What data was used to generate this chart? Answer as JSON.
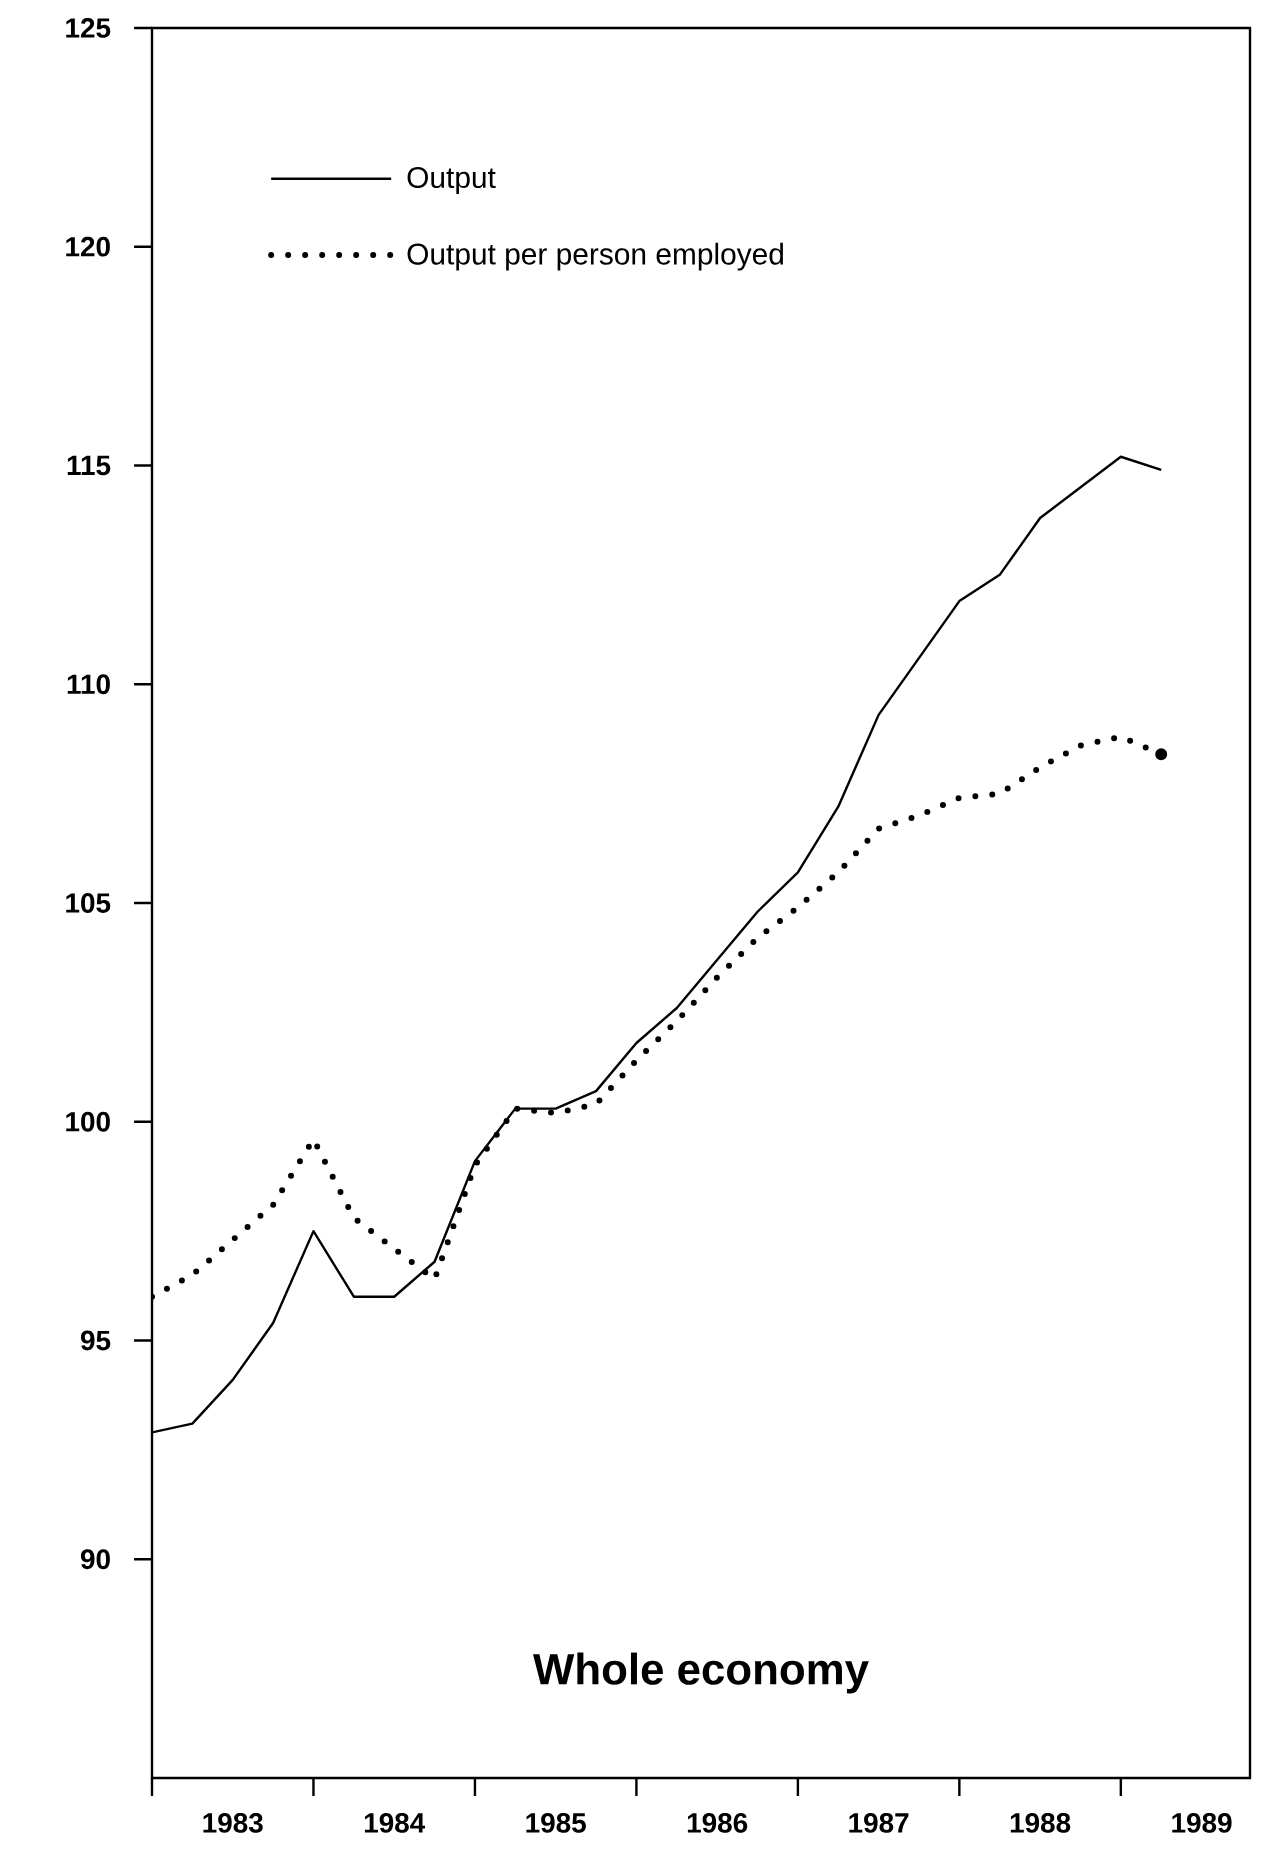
{
  "chart_data": {
    "type": "line",
    "title": "Whole economy",
    "legend": "top left",
    "xlim": [
      1983,
      1989.8
    ],
    "ylim": [
      85,
      125
    ],
    "xticks": [
      {
        "value": 1983,
        "label": null
      },
      {
        "value": 1984,
        "label": null
      },
      {
        "value": 1985,
        "label": null
      },
      {
        "value": 1986,
        "label": null
      },
      {
        "value": 1987,
        "label": null
      },
      {
        "value": 1988,
        "label": null
      },
      {
        "value": 1989,
        "label": null
      },
      {
        "value": 1983.5,
        "label": "1983"
      },
      {
        "value": 1984.5,
        "label": "1984"
      },
      {
        "value": 1985.5,
        "label": "1985"
      },
      {
        "value": 1986.5,
        "label": "1986"
      },
      {
        "value": 1987.5,
        "label": "1987"
      },
      {
        "value": 1988.5,
        "label": "1988"
      },
      {
        "value": 1989.5,
        "label": "1989"
      }
    ],
    "yticks": [
      90,
      95,
      100,
      105,
      110,
      115,
      120,
      125
    ],
    "x": [
      1983,
      1983.25,
      1983.5,
      1983.75,
      1984,
      1984.25,
      1984.5,
      1984.75,
      1985,
      1985.25,
      1985.5,
      1985.75,
      1986,
      1986.25,
      1986.5,
      1986.75,
      1987,
      1987.25,
      1987.5,
      1987.75,
      1988,
      1988.25,
      1988.5,
      1988.75,
      1989,
      1989.25
    ],
    "series": [
      {
        "name": "Output",
        "color": "#000000",
        "line_style": "solid",
        "values": [
          92.9,
          93.1,
          94.1,
          95.4,
          97.5,
          96.0,
          96.0,
          96.8,
          99.1,
          100.3,
          100.3,
          100.7,
          101.8,
          102.6,
          103.7,
          104.8,
          105.7,
          107.2,
          109.3,
          110.6,
          111.9,
          112.5,
          113.8,
          114.5,
          115.2,
          114.9
        ]
      },
      {
        "name": "Output per person employed",
        "color": "#000000",
        "line_style": "dotted",
        "values": [
          96.0,
          96.5,
          97.3,
          98.1,
          99.6,
          97.8,
          97.1,
          96.4,
          99.0,
          100.3,
          100.2,
          100.4,
          101.4,
          102.3,
          103.3,
          104.2,
          104.9,
          105.7,
          106.7,
          107.0,
          107.4,
          107.5,
          108.1,
          108.6,
          108.8,
          108.4
        ]
      }
    ]
  }
}
